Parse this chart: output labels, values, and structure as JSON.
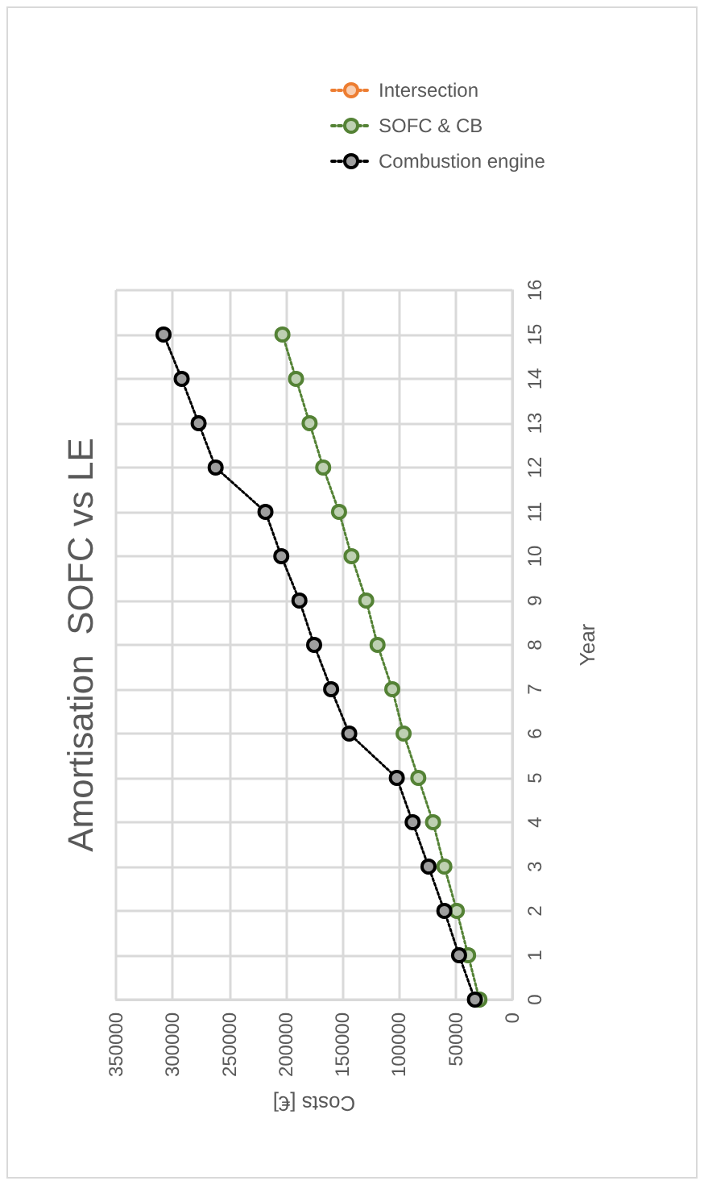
{
  "chart_data": {
    "type": "line",
    "title": "Amortisation  SOFC vs LE",
    "xlabel": "Costs [€]",
    "ylabel": "Year",
    "series": [
      {
        "name": "Intersection",
        "color": "#ed7d31",
        "x": [
          null
        ],
        "values": [
          null
        ]
      },
      {
        "name": "SOFC & CB",
        "color": "#548235",
        "x": [
          29000,
          39000,
          49000,
          60000,
          70000,
          83000,
          96000,
          106000,
          119000,
          129000,
          142000,
          153000,
          167000,
          179000,
          191000,
          203000
        ],
        "values": [
          0,
          1,
          2,
          3,
          4,
          5,
          6,
          7,
          8,
          9,
          10,
          11,
          12,
          13,
          14,
          15
        ]
      },
      {
        "name": "Combustion engine",
        "color": "#000000",
        "x": [
          33000,
          47000,
          60000,
          74000,
          88000,
          102000,
          144000,
          160000,
          175000,
          188000,
          204000,
          218000,
          262000,
          277000,
          292000,
          308000
        ],
        "values": [
          0,
          1,
          2,
          3,
          4,
          5,
          6,
          7,
          8,
          9,
          10,
          11,
          12,
          13,
          14,
          15
        ]
      }
    ],
    "xlim": [
      350000,
      0
    ],
    "xticks": [
      0,
      50000,
      100000,
      150000,
      200000,
      250000,
      300000,
      350000
    ],
    "ylim": [
      0,
      16
    ],
    "yticks": [
      0,
      1,
      2,
      3,
      4,
      5,
      6,
      7,
      8,
      9,
      10,
      11,
      12,
      13,
      14,
      15,
      16
    ],
    "grid": true,
    "legend": "top",
    "marker": "circle",
    "line_style": "dotted"
  }
}
